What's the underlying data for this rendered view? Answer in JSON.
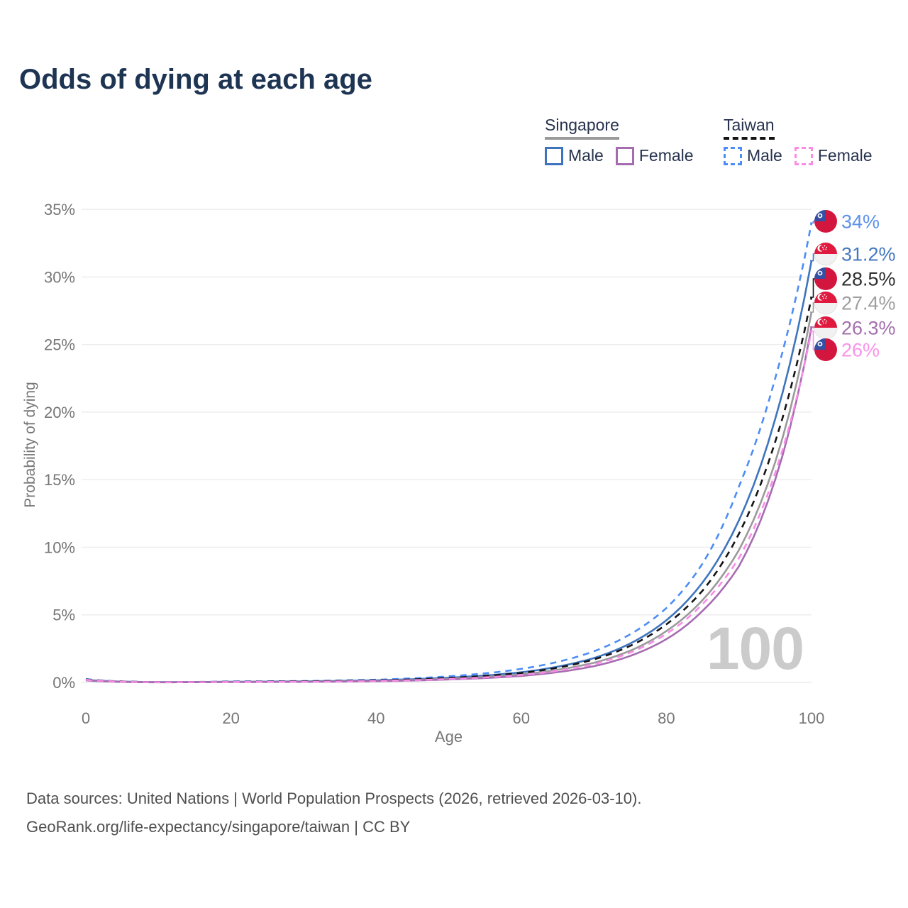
{
  "title": "Odds of dying at each age",
  "legend": {
    "groups": [
      {
        "title": "Singapore",
        "underline_style": "solid",
        "underline_color": "#9A9A9A",
        "items": [
          {
            "label": "Male",
            "color": "#3E74BE",
            "style": "solid"
          },
          {
            "label": "Female",
            "color": "#A66CB0",
            "style": "solid"
          }
        ]
      },
      {
        "title": "Taiwan",
        "underline_style": "dashed",
        "underline_color": "#141414",
        "items": [
          {
            "label": "Male",
            "color": "#4D8DF6",
            "style": "dashed"
          },
          {
            "label": "Female",
            "color": "#FA8CE8",
            "style": "dashed"
          }
        ]
      }
    ]
  },
  "footer": {
    "line1": "Data sources: United Nations | World Population Prospects (2026, retrieved 2026-03-10).",
    "line2": "GeoRank.org/life-expectancy/singapore/taiwan | CC BY"
  },
  "chart_data": {
    "type": "line",
    "title": "Odds of dying at each age",
    "xlabel": "Age",
    "ylabel": "Probability of dying",
    "xlim": [
      0,
      100
    ],
    "ylim": [
      0,
      35
    ],
    "xticks": [
      0,
      20,
      40,
      60,
      80,
      100
    ],
    "yticks": [
      0,
      5,
      10,
      15,
      20,
      25,
      30,
      35
    ],
    "ytick_labels": [
      "0%",
      "5%",
      "10%",
      "15%",
      "20%",
      "25%",
      "30%",
      "35%"
    ],
    "grid": "horizontal",
    "legend_position": "top-right",
    "age_indicator": "100",
    "ages": [
      0,
      10,
      20,
      30,
      40,
      50,
      60,
      70,
      80,
      85,
      90,
      95,
      100
    ],
    "series": [
      {
        "name": "Taiwan Male",
        "country": "taiwan",
        "line": "dashed",
        "color": "#4D8DF6",
        "label_color": "#5D91EC",
        "end_label": "34%",
        "end_value": 34.0,
        "values": [
          0.25,
          0.02,
          0.07,
          0.1,
          0.2,
          0.45,
          1.0,
          2.3,
          5.5,
          8.8,
          14.5,
          22.5,
          34.0
        ]
      },
      {
        "name": "Singapore Male",
        "country": "singapore",
        "line": "solid",
        "color": "#3E74BE",
        "label_color": "#4478C1",
        "end_label": "31.2%",
        "end_value": 31.2,
        "values": [
          0.2,
          0.02,
          0.05,
          0.08,
          0.16,
          0.35,
          0.75,
          1.8,
          4.6,
          7.4,
          12.0,
          19.5,
          31.2
        ]
      },
      {
        "name": "Taiwan Both sexes",
        "country": "taiwan",
        "line": "dashed",
        "color": "#141414",
        "label_color": "#2E2E2E",
        "end_label": "28.5%",
        "end_value": 28.5,
        "values": [
          0.22,
          0.02,
          0.05,
          0.08,
          0.15,
          0.33,
          0.7,
          1.7,
          4.3,
          6.8,
          11.0,
          17.8,
          28.5
        ]
      },
      {
        "name": "Singapore Both sexes",
        "country": "singapore",
        "line": "solid",
        "color": "#9A9A9A",
        "label_color": "#9E9E9E",
        "end_label": "27.4%",
        "end_value": 27.4,
        "values": [
          0.18,
          0.015,
          0.04,
          0.06,
          0.12,
          0.28,
          0.6,
          1.45,
          3.8,
          6.1,
          9.8,
          16.3,
          27.4
        ]
      },
      {
        "name": "Singapore Female",
        "country": "singapore",
        "line": "solid",
        "color": "#A66CB0",
        "label_color": "#A56FAE",
        "end_label": "26.3%",
        "end_value": 26.3,
        "values": [
          0.15,
          0.01,
          0.03,
          0.045,
          0.09,
          0.22,
          0.48,
          1.2,
          3.2,
          5.3,
          8.6,
          15.0,
          26.3
        ]
      },
      {
        "name": "Taiwan Female",
        "country": "taiwan",
        "line": "dashed",
        "color": "#FA8CE8",
        "label_color": "#F992E9",
        "end_label": "26%",
        "end_value": 26.0,
        "values": [
          0.2,
          0.015,
          0.035,
          0.05,
          0.11,
          0.25,
          0.55,
          1.35,
          3.6,
          5.8,
          9.2,
          15.5,
          26.0
        ]
      }
    ]
  }
}
